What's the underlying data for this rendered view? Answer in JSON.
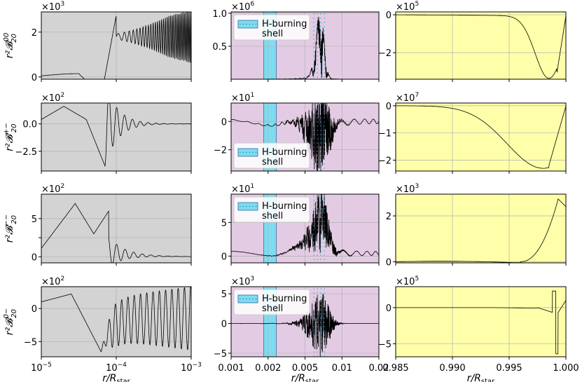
{
  "figure": {
    "colors": {
      "col1_bg": "#d3d3d3",
      "col2_bg": "#e3cce3",
      "col3_bg": "#ffffaa",
      "shell_fill": "#7fdcee",
      "shell_dots": "#1aa7c8",
      "grid": "#b0b0b0",
      "line": "#000000"
    },
    "xlabel": "r/R",
    "xlabel_sub": "star",
    "row_ylabels": [
      {
        "base": "r²𝓑",
        "sub": "20",
        "sup": "00"
      },
      {
        "base": "r²𝓑",
        "sub": "20",
        "sup": "+−"
      },
      {
        "base": "r²𝓑",
        "sub": "20",
        "sup": "−−"
      },
      {
        "base": "r²𝓑",
        "sub": "20",
        "sup": "0−"
      }
    ],
    "legend": {
      "label_line1": "H-burning",
      "label_line2": "shell"
    }
  },
  "chart_data": [
    {
      "type": "line",
      "row": 0,
      "col": 0,
      "xscale": "log",
      "xlim": [
        1e-05,
        0.001
      ],
      "xticks": [
        1e-05,
        0.0001,
        0.001
      ],
      "xticklabels": [
        "10",
        "10",
        "10"
      ],
      "xtick_exps": [
        "−5",
        "−4",
        "−3"
      ],
      "ylim": [
        -0.1,
        2.9
      ],
      "yticks": [
        0,
        2
      ],
      "yticklabels": [
        "0",
        "2"
      ],
      "multiplier_base": "×10",
      "multiplier_exp": "3",
      "pattern": "osc1"
    },
    {
      "type": "line",
      "row": 0,
      "col": 1,
      "xscale": "linear",
      "xlim": [
        0.001,
        0.02
      ],
      "ylim": [
        0,
        1.02
      ],
      "yticks": [
        0.5,
        1.0
      ],
      "yticklabels": [
        "0.5",
        "1.0"
      ],
      "multiplier_base": "×10",
      "multiplier_exp": "6",
      "shell_x": [
        0.0052,
        0.0068
      ],
      "legend_position": "top-left",
      "pattern": "spike_pos"
    },
    {
      "type": "line",
      "row": 0,
      "col": 2,
      "xscale": "linear",
      "xlim": [
        0.985,
        1.0
      ],
      "xticks": [
        0.985,
        0.99,
        0.995,
        1.0
      ],
      "ylim": [
        -3.4,
        0.15
      ],
      "yticks": [
        0,
        -2
      ],
      "yticklabels": [
        "0",
        "−2"
      ],
      "multiplier_base": "×10",
      "multiplier_exp": "5",
      "pattern": "dip1"
    },
    {
      "type": "line",
      "row": 1,
      "col": 0,
      "xscale": "log",
      "xlim": [
        1e-05,
        0.001
      ],
      "xticks": [
        1e-05,
        0.0001,
        0.001
      ],
      "ylim": [
        -4.3,
        1.9
      ],
      "yticks": [
        0,
        -2.5
      ],
      "yticklabels": [
        "0.0",
        "−2.5"
      ],
      "multiplier_base": "×10",
      "multiplier_exp": "2",
      "pattern": "osc2"
    },
    {
      "type": "line",
      "row": 1,
      "col": 1,
      "xscale": "linear",
      "xlim": [
        0.001,
        0.02
      ],
      "ylim": [
        -3.5,
        1.3
      ],
      "yticks": [
        0,
        -2
      ],
      "yticklabels": [
        "0",
        "−2"
      ],
      "multiplier_base": "×10",
      "multiplier_exp": "1",
      "shell_x": [
        0.0052,
        0.0068
      ],
      "legend_position": "bottom-center",
      "pattern": "burst"
    },
    {
      "type": "line",
      "row": 1,
      "col": 2,
      "xscale": "linear",
      "xlim": [
        0.985,
        1.0
      ],
      "xticks": [
        0.985,
        0.99,
        0.995,
        1.0
      ],
      "ylim": [
        -2.4,
        0.1
      ],
      "yticks": [
        0,
        -1,
        -2
      ],
      "yticklabels": [
        "0",
        "−1",
        "−2"
      ],
      "multiplier_base": "×10",
      "multiplier_exp": "7",
      "pattern": "dip2"
    },
    {
      "type": "line",
      "row": 2,
      "col": 0,
      "xscale": "log",
      "xlim": [
        1e-05,
        0.001
      ],
      "xticks": [
        1e-05,
        0.0001,
        0.001
      ],
      "ylim": [
        -0.8,
        8.2
      ],
      "yticks": [
        0,
        2.5,
        5
      ],
      "yticklabels": [
        "0",
        "",
        "5"
      ],
      "multiplier_base": "×10",
      "multiplier_exp": "2",
      "pattern": "osc3"
    },
    {
      "type": "line",
      "row": 2,
      "col": 1,
      "xscale": "linear",
      "xlim": [
        0.001,
        0.02
      ],
      "ylim": [
        -1.0,
        9.2
      ],
      "yticks": [
        0,
        5
      ],
      "yticklabels": [
        "0",
        "5"
      ],
      "multiplier_base": "×10",
      "multiplier_exp": "1",
      "shell_x": [
        0.0052,
        0.0068
      ],
      "legend_position": "top-center",
      "pattern": "burst_pos"
    },
    {
      "type": "line",
      "row": 2,
      "col": 2,
      "xscale": "linear",
      "xlim": [
        0.985,
        1.0
      ],
      "xticks": [
        0.985,
        0.99,
        0.995,
        1.0
      ],
      "ylim": [
        -0.05,
        2.95
      ],
      "yticks": [
        0,
        2
      ],
      "yticklabels": [
        "0",
        "2"
      ],
      "multiplier_base": "×10",
      "multiplier_exp": "3",
      "pattern": "rise"
    },
    {
      "type": "line",
      "row": 3,
      "col": 0,
      "xscale": "log",
      "xlim": [
        1e-05,
        0.001
      ],
      "xticks": [
        1e-05,
        0.0001,
        0.001
      ],
      "ylim": [
        -7.3,
        3.3
      ],
      "yticks": [
        0,
        -5
      ],
      "yticklabels": [
        "0",
        "−5"
      ],
      "multiplier_base": "×10",
      "multiplier_exp": "2",
      "pattern": "osc4"
    },
    {
      "type": "line",
      "row": 3,
      "col": 1,
      "xscale": "linear",
      "xlim": [
        0.001,
        0.02
      ],
      "ylim": [
        -5.6,
        6.2
      ],
      "yticks": [
        -5,
        0,
        5
      ],
      "yticklabels": [
        "−5",
        "0",
        "5"
      ],
      "multiplier_base": "×10",
      "multiplier_exp": "3",
      "shell_x": [
        0.0052,
        0.0068
      ],
      "legend_position": "top-center",
      "pattern": "burst_sym"
    },
    {
      "type": "line",
      "row": 3,
      "col": 2,
      "xscale": "linear",
      "xlim": [
        0.985,
        1.0
      ],
      "xticks": [
        0.985,
        0.99,
        0.995,
        1.0
      ],
      "ylim": [
        -6.8,
        2.9
      ],
      "yticks": [
        0,
        -5
      ],
      "yticklabels": [
        "0",
        "−5"
      ],
      "multiplier_base": "×10",
      "multiplier_exp": "5",
      "pattern": "spike_neg"
    }
  ],
  "bottom_axes": {
    "col0": {
      "ticks": [
        1e-05,
        0.0001,
        0.001
      ],
      "labels": [
        "10",
        "10",
        "10"
      ],
      "exps": [
        "−5",
        "−4",
        "−3"
      ]
    },
    "col1": {
      "ticks": [
        0.001,
        0.002,
        0.005,
        0.01,
        0.02
      ],
      "labels": [
        "0.001",
        "0.002",
        "0.005",
        "0.01",
        "0.02"
      ]
    },
    "col2": {
      "ticks": [
        0.985,
        0.99,
        0.995,
        1.0
      ],
      "labels": [
        "0.985",
        "0.990",
        "0.995",
        "1.000"
      ]
    }
  }
}
